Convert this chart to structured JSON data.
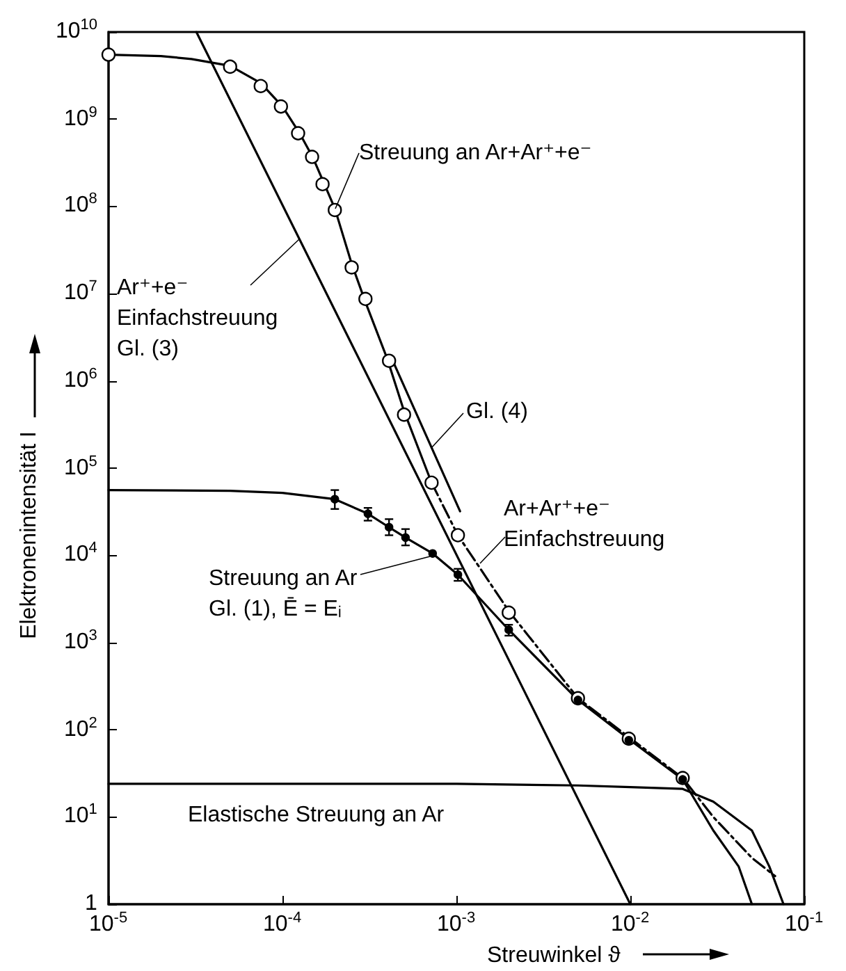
{
  "chart_data": {
    "type": "line",
    "xlabel": "Streuwinkel ϑ",
    "ylabel": "Elektronenintensität I",
    "log": "xy",
    "grid": false,
    "legend": false,
    "xlim": [
      1e-05,
      0.1
    ],
    "ylim": [
      1,
      10000000000.0
    ],
    "xticks": [
      {
        "value": 1e-05,
        "label": "10$^{-5}$"
      },
      {
        "value": 0.0001,
        "label": "10$^{-4}$"
      },
      {
        "value": 0.001,
        "label": "10$^{-3}$"
      },
      {
        "value": 0.01,
        "label": "10$^{-2}$"
      },
      {
        "value": 0.1,
        "label": "10$^{-1}$"
      }
    ],
    "yticks": [
      1,
      {
        "value": 10,
        "label": "10$^{1}$"
      },
      {
        "value": 100,
        "label": "10$^{2}$"
      },
      {
        "value": 1000,
        "label": "10$^{3}$"
      },
      {
        "value": 10000,
        "label": "10$^{4}$"
      },
      {
        "value": 100000,
        "label": "10$^{5}$"
      },
      {
        "value": 1000000,
        "label": "10$^{6}$"
      },
      {
        "value": 10000000,
        "label": "10$^{7}$"
      },
      {
        "value": 100000000,
        "label": "10$^{8}$"
      },
      {
        "value": 1000000000,
        "label": "10$^{9}$"
      },
      {
        "value": 10000000000,
        "label": "10$^{10}$"
      }
    ],
    "series": [
      {
        "name": "Streuung an Ar+Ar⁺+e⁻",
        "color": "#000000",
        "marker": "none",
        "line_style": "solid",
        "x": [
          1e-05,
          2e-05,
          3e-05,
          5e-05,
          7.5e-05,
          0.0001,
          0.000125,
          0.00015,
          0.0002,
          0.00025,
          0.0003,
          0.0004,
          0.0005,
          0.00072
        ],
        "values": [
          5500000000.0,
          5300000000.0,
          4900000000.0,
          4100000000.0,
          2600000000.0,
          1400000000.0,
          700000000.0,
          360000000.0,
          95000000.0,
          22000000.0,
          8000000.0,
          1800000.0,
          450000.0,
          68000.0
        ]
      },
      {
        "type": "scatter",
        "color": "#000000",
        "marker": "circle",
        "x": [
          1e-05,
          5e-05,
          7.5e-05,
          9.8e-05,
          0.000123,
          0.000148,
          0.00017,
          0.0002,
          0.00025,
          0.0003,
          0.00041,
          0.0005,
          0.00072,
          0.00102,
          0.002,
          0.005,
          0.0098,
          0.02
        ],
        "values": [
          5500000000.0,
          4000000000.0,
          2400000000.0,
          1400000000.0,
          690000000.0,
          370000000.0,
          180000000.0,
          91000000.0,
          20000000.0,
          8700000.0,
          1700000.0,
          410000.0,
          68000.0,
          17000.0,
          2200,
          230,
          79,
          28
        ]
      },
      {
        "name": "Ar⁺+e⁻\nEinfachstreuung\nGl. (3)",
        "color": "#000000",
        "marker": "none",
        "line_style": "solid",
        "x": [
          3.2e-05,
          0.01
        ],
        "values": [
          10000000000.0,
          1
        ]
      },
      {
        "name": "Gl. (4)",
        "color": "#000000",
        "marker": "none",
        "line_style": "solid",
        "x": [
          0.00042,
          0.00105
        ],
        "values": [
          1900000.0,
          32000.0
        ]
      },
      {
        "name": "Streuung an Ar\nGl. (1), Ē = Eᵢ",
        "color": "#000000",
        "marker": "none",
        "line_style": "solid",
        "x": [
          1e-05,
          5e-05,
          0.0001,
          0.0002,
          0.00031,
          0.00041,
          0.00051,
          0.00073,
          0.00102,
          0.002,
          0.005,
          0.01,
          0.02,
          0.03,
          0.042,
          0.05
        ],
        "values": [
          56000.0,
          55000.0,
          52000.0,
          44000.0,
          30000.0,
          21000.0,
          16000.0,
          10500.0,
          6000,
          1400,
          220,
          76,
          27,
          7,
          2.7,
          1
        ]
      },
      {
        "type": "scatter",
        "color": "#000000",
        "marker": "circle",
        "x": [
          0.0002,
          0.00031,
          0.00041,
          0.00051,
          0.00073,
          0.00102,
          0.002,
          0.005,
          0.0098,
          0.02
        ],
        "values": [
          44000.0,
          30000.0,
          21000.0,
          16000.0,
          10500.0,
          6000,
          1400,
          220,
          76,
          27
        ],
        "errors": [
          [
            34000.0,
            56000.0
          ],
          [
            25000.0,
            35000.0
          ],
          [
            17000.0,
            26000.0
          ],
          [
            13000.0,
            20000.0
          ],
          null,
          [
            5100,
            7000
          ],
          [
            1200,
            1600
          ],
          null,
          null,
          null
        ]
      },
      {
        "name": "Ar+Ar⁺+e⁻\nEinfachstreuung",
        "color": "#000000",
        "marker": "none",
        "line_style": "dashed",
        "x": [
          0.00072,
          0.00102,
          0.002,
          0.005,
          0.01,
          0.02,
          0.03,
          0.05,
          0.068
        ],
        "values": [
          68000.0,
          17000.0,
          2300,
          230,
          80,
          28,
          10,
          3.4,
          2.1
        ]
      },
      {
        "name": "Elastische Streuung an Ar",
        "color": "#000000",
        "marker": "none",
        "line_style": "solid",
        "x": [
          1e-05,
          0.001,
          0.005,
          0.01,
          0.02,
          0.03,
          0.05,
          0.063,
          0.076
        ],
        "values": [
          24,
          24,
          23,
          22,
          21,
          15,
          7,
          2.7,
          1
        ]
      }
    ]
  }
}
